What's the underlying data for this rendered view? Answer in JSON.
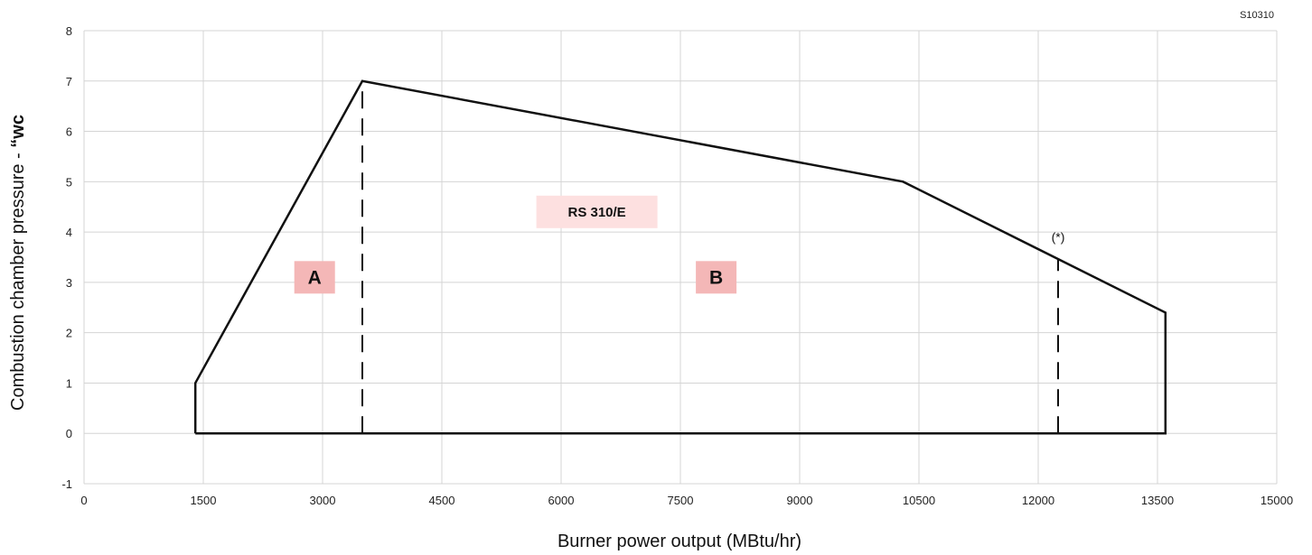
{
  "figure_code": "S10310",
  "chart_data": {
    "type": "line",
    "xlabel": "Burner power output (MBtu/hr)",
    "ylabel_main": "Combustion chamber pressure - ",
    "ylabel_unit": "“wc",
    "xlim": [
      0,
      15000
    ],
    "ylim": [
      -1,
      8
    ],
    "x_ticks": [
      0,
      1500,
      3000,
      4500,
      6000,
      7500,
      9000,
      10500,
      12000,
      13500,
      15000
    ],
    "y_ticks": [
      -1,
      0,
      1,
      2,
      3,
      4,
      5,
      6,
      7,
      8
    ],
    "grid": true,
    "series": [
      {
        "x": [
          1400,
          1400,
          3500,
          10300,
          13600,
          13600,
          1400
        ],
        "y": [
          0,
          1,
          7,
          5,
          2.4,
          0,
          0
        ]
      }
    ],
    "dashed_lines": [
      {
        "x": 3500,
        "y_from": 0,
        "y_to": 7
      },
      {
        "x": 12250,
        "y_from": 0,
        "y_to": 3.45
      }
    ],
    "zone_labels": [
      {
        "text": "A",
        "x": 2900,
        "y": 3.1,
        "bg": "#f4b7b7"
      },
      {
        "text": "B",
        "x": 7950,
        "y": 3.1,
        "bg": "#f4b7b7"
      }
    ],
    "model_label": {
      "text": "RS 310/E",
      "x": 6450,
      "y": 4.4,
      "bg": "#fde0e0"
    },
    "note_label": {
      "text": "(*)",
      "x": 12250,
      "y": 3.9
    }
  }
}
